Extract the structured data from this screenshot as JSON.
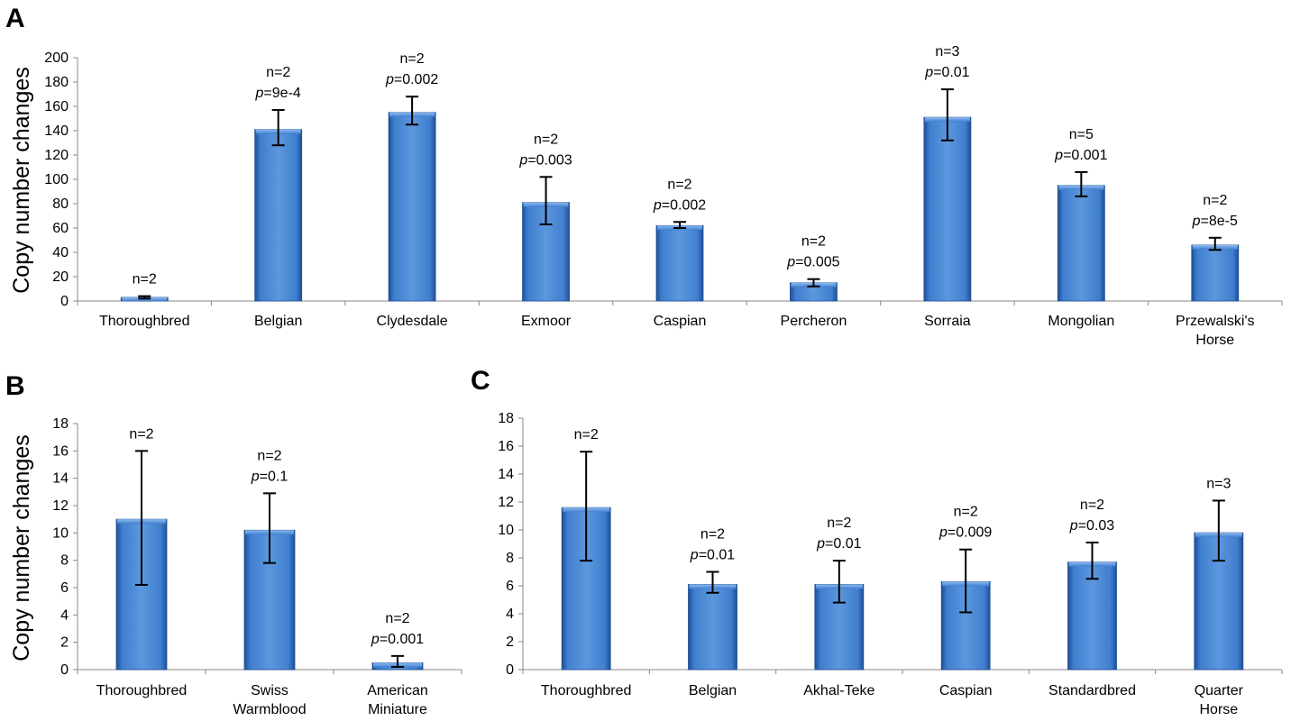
{
  "chart_data": [
    {
      "panel": "A",
      "type": "bar",
      "ylabel": "Copy number changes",
      "ylim": [
        0,
        200
      ],
      "yticks": [
        0,
        20,
        40,
        60,
        80,
        100,
        120,
        140,
        160,
        180,
        200
      ],
      "categories": [
        "Thoroughbred",
        "Belgian",
        "Clydesdale",
        "Exmoor",
        "Caspian",
        "Percheron",
        "Sorraia",
        "Mongolian",
        "Przewalski's Horse"
      ],
      "values": [
        3,
        141,
        155,
        81,
        62,
        15,
        151,
        95,
        46
      ],
      "error_low": [
        2,
        128,
        145,
        63,
        60,
        12,
        132,
        86,
        42
      ],
      "error_high": [
        4,
        157,
        168,
        102,
        65,
        18,
        174,
        106,
        52
      ],
      "annotations": [
        {
          "n": "n=2",
          "p": ""
        },
        {
          "n": "n=2",
          "p": "=9e-4"
        },
        {
          "n": "n=2",
          "p": "=0.002"
        },
        {
          "n": "n=2",
          "p": "=0.003"
        },
        {
          "n": "n=2",
          "p": "=0.002"
        },
        {
          "n": "n=2",
          "p": "=0.005"
        },
        {
          "n": "n=3",
          "p": "=0.01"
        },
        {
          "n": "n=5",
          "p": "=0.001"
        },
        {
          "n": "n=2",
          "p": "=8e-5"
        }
      ]
    },
    {
      "panel": "B",
      "type": "bar",
      "ylabel": "Copy number changes",
      "ylim": [
        0,
        18
      ],
      "yticks": [
        0,
        2,
        4,
        6,
        8,
        10,
        12,
        14,
        16,
        18
      ],
      "categories": [
        "Thoroughbred",
        "Swiss Warmblood",
        "American Miniature"
      ],
      "values": [
        11,
        10.2,
        0.5
      ],
      "error_low": [
        6.2,
        7.8,
        0.2
      ],
      "error_high": [
        16,
        12.9,
        1.0
      ],
      "annotations": [
        {
          "n": "n=2",
          "p": ""
        },
        {
          "n": "n=2",
          "p": "=0.1"
        },
        {
          "n": "n=2",
          "p": "=0.001"
        }
      ]
    },
    {
      "panel": "C",
      "type": "bar",
      "ylabel": "",
      "ylim": [
        0,
        18
      ],
      "yticks": [
        0,
        2,
        4,
        6,
        8,
        10,
        12,
        14,
        16,
        18
      ],
      "categories": [
        "Thoroughbred",
        "Belgian",
        "Akhal-Teke",
        "Caspian",
        "Standardbred",
        "Quarter Horse"
      ],
      "values": [
        11.6,
        6.1,
        6.1,
        6.3,
        7.7,
        9.8
      ],
      "error_low": [
        7.8,
        5.5,
        4.8,
        4.1,
        6.5,
        7.8
      ],
      "error_high": [
        15.6,
        7.0,
        7.8,
        8.6,
        9.1,
        12.1
      ],
      "annotations": [
        {
          "n": "n=2",
          "p": ""
        },
        {
          "n": "n=2",
          "p": "=0.01"
        },
        {
          "n": "n=2",
          "p": "=0.01"
        },
        {
          "n": "n=2",
          "p": "=0.009"
        },
        {
          "n": "n=2",
          "p": "=0.03"
        },
        {
          "n": "n=3",
          "p": ""
        }
      ]
    }
  ],
  "p_symbol": "p",
  "colors": {
    "bar": "#3f7fcf",
    "bar_dark": "#1f4f96",
    "bar_light": "#8fbcf0",
    "axis": "#888888",
    "error": "#000000"
  }
}
